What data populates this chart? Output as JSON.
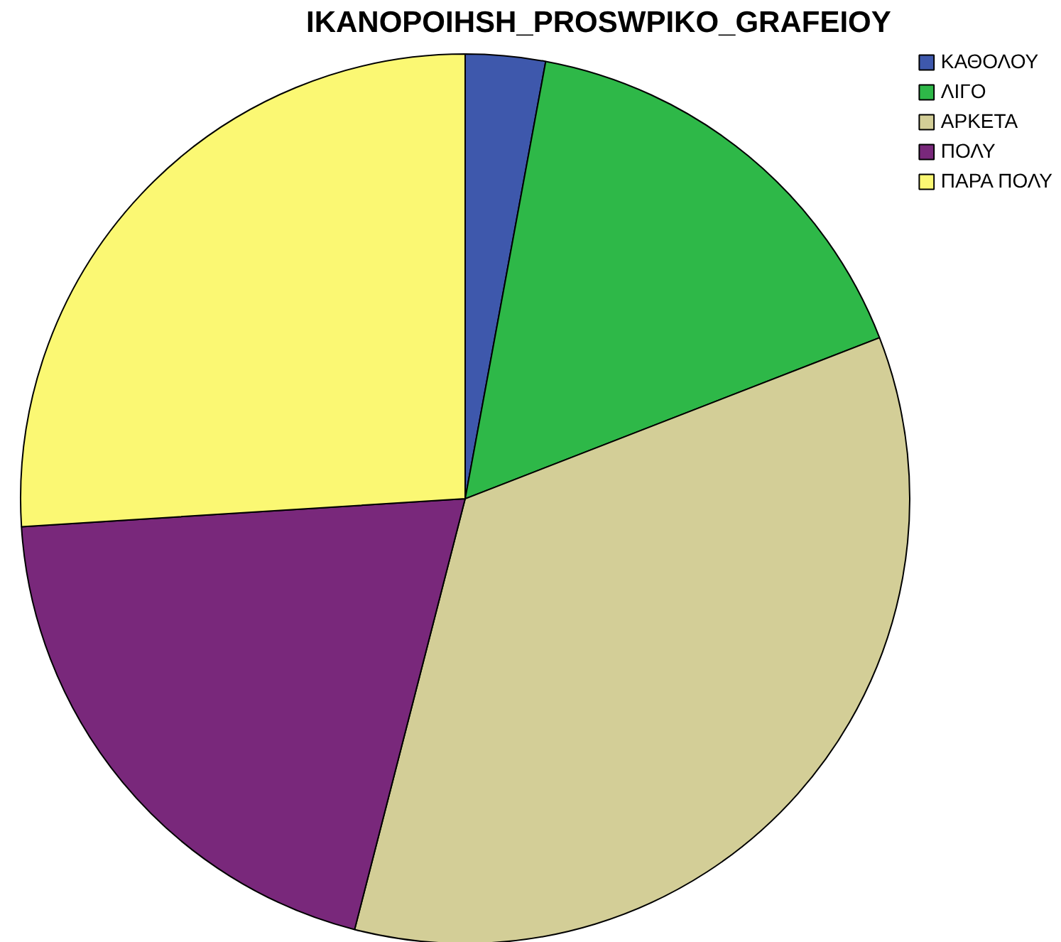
{
  "chart_data": {
    "type": "pie",
    "title": "IKANOPOIHSH_PROSWPIKO_GRAFEIOY",
    "categories": [
      "ΚΑΘΟΛΟΥ",
      "ΛΙΓΟ",
      "ΑΡΚΕΤΑ",
      "ΠΟΛΥ",
      "ΠΑΡΑ ΠΟΛΥ"
    ],
    "values": [
      2.9,
      16.2,
      34.9,
      20.0,
      26.0
    ],
    "colors": [
      "#3e58ac",
      "#2eb848",
      "#d3ce97",
      "#79287b",
      "#fbf873"
    ],
    "legend": "top right"
  }
}
